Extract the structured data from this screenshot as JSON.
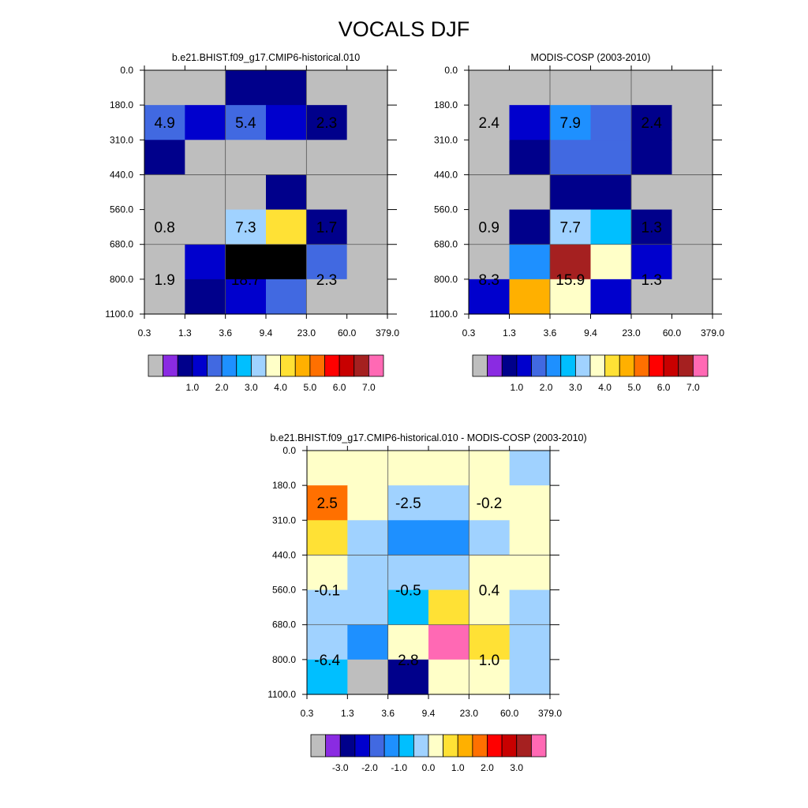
{
  "figure": {
    "title": "VOCALS DJF"
  },
  "chart_data": [
    {
      "type": "heatmap",
      "title": "b.e21.BHIST.f09_g17.CMIP6-historical.010",
      "x_ticks": [
        "0.3",
        "1.3",
        "3.6",
        "9.4",
        "23.0",
        "60.0",
        "379.0"
      ],
      "y_ticks": [
        "0.0",
        "180.0",
        "310.0",
        "440.0",
        "560.0",
        "680.0",
        "800.0",
        "1100.0"
      ],
      "cells": [
        [
          0,
          0,
          2,
          2,
          0,
          0
        ],
        [
          4,
          3,
          4,
          3,
          2,
          0
        ],
        [
          2,
          0,
          0,
          0,
          0,
          0
        ],
        [
          0,
          0,
          0,
          2,
          0,
          0
        ],
        [
          0,
          0,
          7,
          9,
          2,
          0
        ],
        [
          0,
          3,
          17,
          18,
          4,
          0
        ],
        [
          0,
          2,
          3,
          4,
          0,
          0
        ]
      ],
      "annotations": [
        {
          "text": "4.9",
          "col": 0.5,
          "row": 1.5
        },
        {
          "text": "5.4",
          "col": 2.5,
          "row": 1.5
        },
        {
          "text": "2.3",
          "col": 4.5,
          "row": 1.5
        },
        {
          "text": "0.8",
          "col": 0.5,
          "row": 4.5
        },
        {
          "text": "7.3",
          "col": 2.5,
          "row": 4.5
        },
        {
          "text": "1.7",
          "col": 4.5,
          "row": 4.5
        },
        {
          "text": "1.9",
          "col": 0.5,
          "row": 6.0
        },
        {
          "text": "18.7",
          "col": 2.5,
          "row": 6.0
        },
        {
          "text": "2.3",
          "col": 4.5,
          "row": 6.0
        }
      ],
      "colorbar": {
        "colors": [
          "#bebebe",
          "#8a2be2",
          "#00008b",
          "#0000cd",
          "#4169e1",
          "#1e90ff",
          "#00bfff",
          "#a0d2ff",
          "#ffffc8",
          "#ffe135",
          "#ffb000",
          "#ff7000",
          "#ff0000",
          "#c80000",
          "#a52020",
          "#ff69b4"
        ],
        "labels": [
          {
            "text": "1.0",
            "boundary": 3
          },
          {
            "text": "2.0",
            "boundary": 5
          },
          {
            "text": "3.0",
            "boundary": 7
          },
          {
            "text": "4.0",
            "boundary": 9
          },
          {
            "text": "5.0",
            "boundary": 11
          },
          {
            "text": "6.0",
            "boundary": 13
          },
          {
            "text": "7.0",
            "boundary": 15
          }
        ]
      }
    },
    {
      "type": "heatmap",
      "title": "MODIS-COSP (2003-2010)",
      "x_ticks": [
        "0.3",
        "1.3",
        "3.6",
        "9.4",
        "23.0",
        "60.0",
        "379.0"
      ],
      "y_ticks": [
        "0.0",
        "180.0",
        "310.0",
        "440.0",
        "560.0",
        "680.0",
        "800.0",
        "1100.0"
      ],
      "cells": [
        [
          0,
          0,
          0,
          0,
          0,
          0
        ],
        [
          0,
          3,
          5,
          4,
          2,
          0
        ],
        [
          0,
          2,
          4,
          4,
          2,
          0
        ],
        [
          0,
          0,
          2,
          2,
          0,
          0
        ],
        [
          0,
          2,
          7,
          6,
          2,
          0
        ],
        [
          0,
          5,
          14,
          8,
          3,
          0
        ],
        [
          3,
          10,
          8,
          3,
          0,
          0
        ]
      ],
      "annotations": [
        {
          "text": "2.4",
          "col": 0.5,
          "row": 1.5
        },
        {
          "text": "7.9",
          "col": 2.5,
          "row": 1.5
        },
        {
          "text": "2.4",
          "col": 4.5,
          "row": 1.5
        },
        {
          "text": "0.9",
          "col": 0.5,
          "row": 4.5
        },
        {
          "text": "7.7",
          "col": 2.5,
          "row": 4.5
        },
        {
          "text": "1.3",
          "col": 4.5,
          "row": 4.5
        },
        {
          "text": "8.3",
          "col": 0.5,
          "row": 6.0
        },
        {
          "text": "15.9",
          "col": 2.5,
          "row": 6.0
        },
        {
          "text": "1.3",
          "col": 4.5,
          "row": 6.0
        }
      ],
      "colorbar": {
        "colors": [
          "#bebebe",
          "#8a2be2",
          "#00008b",
          "#0000cd",
          "#4169e1",
          "#1e90ff",
          "#00bfff",
          "#a0d2ff",
          "#ffffc8",
          "#ffe135",
          "#ffb000",
          "#ff7000",
          "#ff0000",
          "#c80000",
          "#a52020",
          "#ff69b4"
        ],
        "labels": [
          {
            "text": "1.0",
            "boundary": 3
          },
          {
            "text": "2.0",
            "boundary": 5
          },
          {
            "text": "3.0",
            "boundary": 7
          },
          {
            "text": "4.0",
            "boundary": 9
          },
          {
            "text": "5.0",
            "boundary": 11
          },
          {
            "text": "6.0",
            "boundary": 13
          },
          {
            "text": "7.0",
            "boundary": 15
          }
        ]
      }
    },
    {
      "type": "heatmap",
      "title": "b.e21.BHIST.f09_g17.CMIP6-historical.010 - MODIS-COSP (2003-2010)",
      "x_ticks": [
        "0.3",
        "1.3",
        "3.6",
        "9.4",
        "23.0",
        "60.0",
        "379.0"
      ],
      "y_ticks": [
        "0.0",
        "180.0",
        "310.0",
        "440.0",
        "560.0",
        "680.0",
        "800.0",
        "1100.0"
      ],
      "cells": [
        [
          8,
          8,
          8,
          8,
          8,
          7
        ],
        [
          11,
          8,
          7,
          7,
          8,
          8
        ],
        [
          9,
          7,
          5,
          5,
          7,
          8
        ],
        [
          8,
          7,
          7,
          7,
          8,
          8
        ],
        [
          7,
          7,
          6,
          9,
          8,
          7
        ],
        [
          7,
          5,
          8,
          15,
          9,
          7
        ],
        [
          6,
          0,
          2,
          8,
          8,
          7
        ]
      ],
      "annotations": [
        {
          "text": "2.5",
          "col": 0.5,
          "row": 1.5
        },
        {
          "text": "-2.5",
          "col": 2.5,
          "row": 1.5
        },
        {
          "text": "-0.2",
          "col": 4.5,
          "row": 1.5
        },
        {
          "text": "-0.1",
          "col": 0.5,
          "row": 4.0
        },
        {
          "text": "-0.5",
          "col": 2.5,
          "row": 4.0
        },
        {
          "text": "0.4",
          "col": 4.5,
          "row": 4.0
        },
        {
          "text": "-6.4",
          "col": 0.5,
          "row": 6.0
        },
        {
          "text": "2.8",
          "col": 2.5,
          "row": 6.0
        },
        {
          "text": "1.0",
          "col": 4.5,
          "row": 6.0
        }
      ],
      "colorbar": {
        "colors": [
          "#bebebe",
          "#8a2be2",
          "#00008b",
          "#0000cd",
          "#4169e1",
          "#1e90ff",
          "#00bfff",
          "#a0d2ff",
          "#ffffc8",
          "#ffe135",
          "#ffb000",
          "#ff7000",
          "#ff0000",
          "#c80000",
          "#a52020",
          "#ff69b4"
        ],
        "labels": [
          {
            "text": "-3.0",
            "boundary": 2
          },
          {
            "text": "-2.0",
            "boundary": 4
          },
          {
            "text": "-1.0",
            "boundary": 6
          },
          {
            "text": "0.0",
            "boundary": 8
          },
          {
            "text": "1.0",
            "boundary": 10
          },
          {
            "text": "2.0",
            "boundary": 12
          },
          {
            "text": "3.0",
            "boundary": 14
          }
        ]
      }
    }
  ]
}
